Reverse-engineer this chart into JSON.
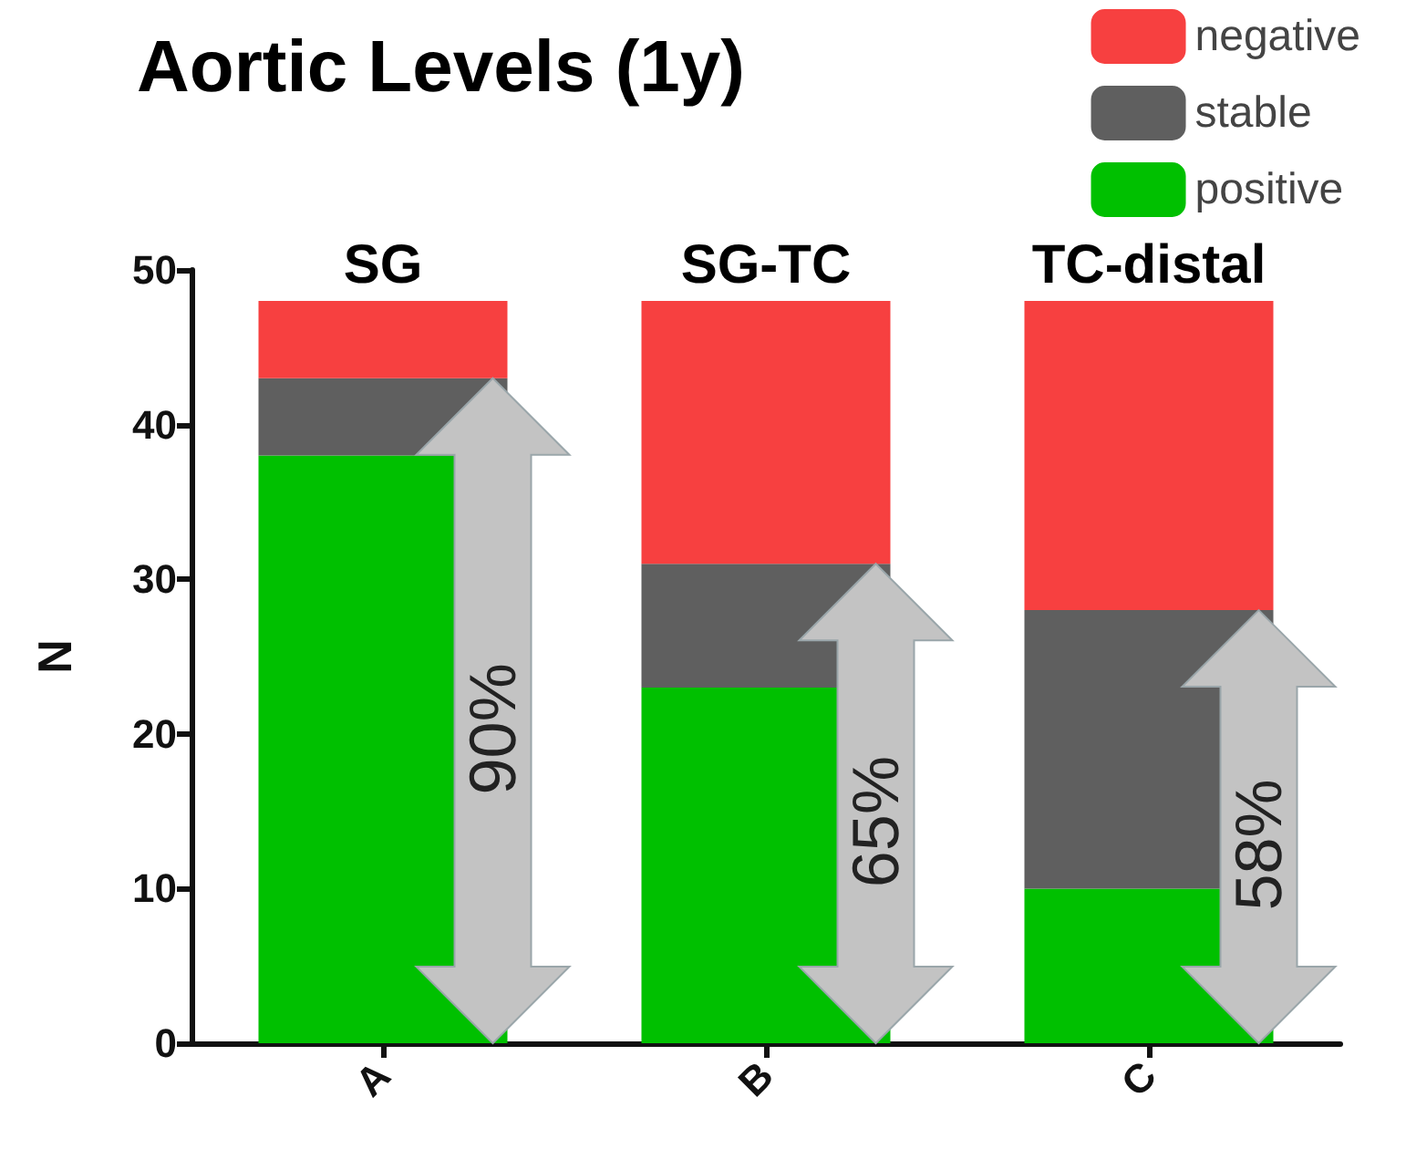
{
  "chart_data": {
    "type": "bar",
    "title": "Aortic Levels (1y)",
    "ylabel": "N",
    "categories": [
      "A",
      "B",
      "C"
    ],
    "stacked": true,
    "series": [
      {
        "name": "positive",
        "color": "#00c000",
        "values": [
          38,
          23,
          10
        ]
      },
      {
        "name": "stable",
        "color": "#5f5f5f",
        "values": [
          5,
          8,
          18
        ]
      },
      {
        "name": "negative",
        "color": "#f74040",
        "values": [
          5,
          17,
          20
        ]
      }
    ],
    "ylim": [
      0,
      50
    ],
    "yticks": [
      0,
      10,
      20,
      30,
      40,
      50
    ],
    "grid": false,
    "legend": "top right",
    "annotations": [
      {
        "text": "SG",
        "x": "A",
        "y": 48
      },
      {
        "text": "SG-TC",
        "x": "B",
        "y": 48
      },
      {
        "text": "TC-distal",
        "x": "C",
        "y": 48
      },
      "90%",
      "65%",
      "58%"
    ]
  }
}
